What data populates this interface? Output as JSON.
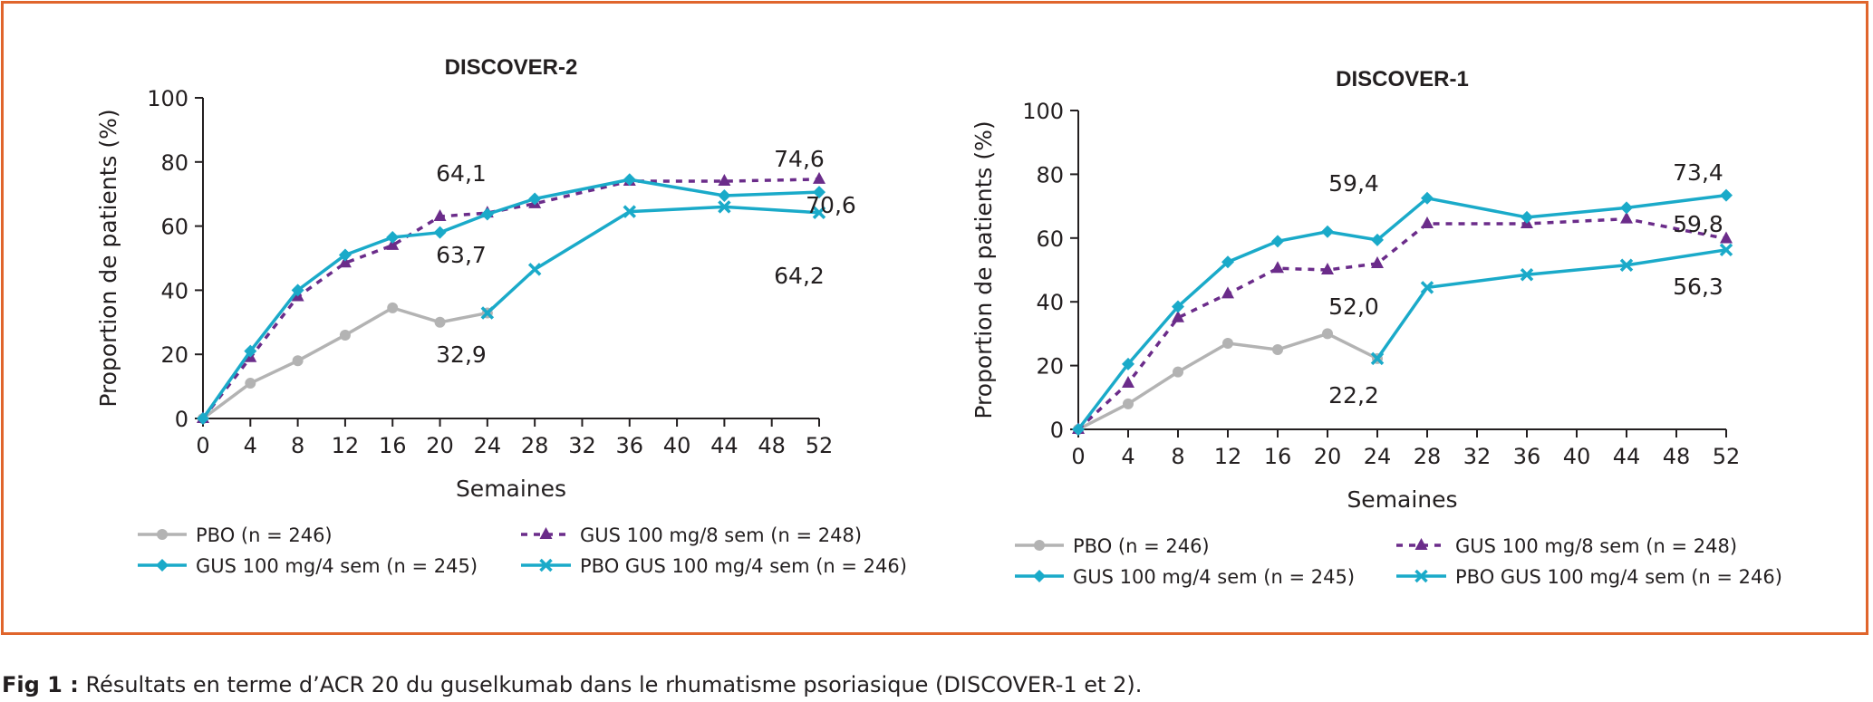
{
  "caption": {
    "label": "Fig 1 :",
    "text": "Résultats en terme d’ACR 20 du guselkumab dans le rhumatisme psoriasique (DISCOVER-1 et 2)."
  },
  "colors": {
    "frame": "#e0652c",
    "pbo": "#b3b3b3",
    "gus8": "#6b2c8a",
    "gus4": "#1aaac9",
    "pbo_gus": "#1aaac9"
  },
  "chart_data": [
    {
      "type": "line",
      "title": "DISCOVER-2",
      "xlabel": "Semaines",
      "ylabel": "Proportion de patients (%)",
      "ylim": [
        0,
        100
      ],
      "xlim": [
        0,
        52
      ],
      "yticks": [
        0,
        20,
        40,
        60,
        80,
        100
      ],
      "xticks": [
        0,
        4,
        8,
        12,
        16,
        20,
        24,
        28,
        32,
        36,
        40,
        44,
        48,
        52
      ],
      "legend_position": "bottom",
      "series": [
        {
          "name": "PBO (n = 246)",
          "style": "pbo",
          "x": [
            0,
            4,
            8,
            12,
            16,
            20,
            24
          ],
          "y": [
            0,
            11,
            18,
            26,
            34.5,
            30,
            32.9
          ]
        },
        {
          "name": "GUS 100 mg/8 sem (n = 248)",
          "style": "gus8",
          "x": [
            0,
            4,
            8,
            12,
            16,
            20,
            24,
            28,
            36,
            44,
            52
          ],
          "y": [
            0,
            19,
            38,
            48.5,
            54,
            63,
            64.1,
            67,
            74,
            74,
            74.6
          ]
        },
        {
          "name": "GUS 100 mg/4 sem (n = 245)",
          "style": "gus4",
          "x": [
            0,
            4,
            8,
            12,
            16,
            20,
            24,
            28,
            36,
            44,
            52
          ],
          "y": [
            0,
            21,
            40,
            51,
            56.5,
            58,
            63.7,
            68.5,
            74.5,
            69.5,
            70.6
          ]
        },
        {
          "name": "PBO GUS 100 mg/4 sem (n = 246)",
          "style": "pbo_gus",
          "x": [
            24,
            28,
            36,
            44,
            52
          ],
          "y": [
            32.9,
            46.5,
            64.5,
            66,
            64.2
          ]
        }
      ],
      "annotations": [
        {
          "text": "64,1",
          "x": 24,
          "y": 64.1
        },
        {
          "text": "74,6",
          "x": 52,
          "y": 74.6
        },
        {
          "text": "70,6",
          "x": 52,
          "y": 70.6
        },
        {
          "text": "63,7",
          "x": 24,
          "y": 63.7
        },
        {
          "text": "64,2",
          "x": 52,
          "y": 64.2
        },
        {
          "text": "32,9",
          "x": 24,
          "y": 32.9
        }
      ]
    },
    {
      "type": "line",
      "title": "DISCOVER-1",
      "xlabel": "Semaines",
      "ylabel": "Proportion de patients (%)",
      "ylim": [
        0,
        100
      ],
      "xlim": [
        0,
        52
      ],
      "yticks": [
        0,
        20,
        40,
        60,
        80,
        100
      ],
      "xticks": [
        0,
        4,
        8,
        12,
        16,
        20,
        24,
        28,
        32,
        36,
        40,
        44,
        48,
        52
      ],
      "legend_position": "bottom",
      "series": [
        {
          "name": "PBO (n = 246)",
          "style": "pbo",
          "x": [
            0,
            4,
            8,
            12,
            16,
            20,
            24
          ],
          "y": [
            0,
            8,
            18,
            27,
            25,
            30,
            22.2
          ]
        },
        {
          "name": "GUS 100 mg/8 sem (n = 248)",
          "style": "gus8",
          "x": [
            0,
            4,
            8,
            12,
            16,
            20,
            24,
            28,
            36,
            44,
            52
          ],
          "y": [
            0,
            14.5,
            35,
            42.5,
            50.5,
            50,
            52.0,
            64.5,
            64.5,
            66,
            59.8
          ]
        },
        {
          "name": "GUS 100 mg/4 sem (n = 245)",
          "style": "gus4",
          "x": [
            0,
            4,
            8,
            12,
            16,
            20,
            24,
            28,
            36,
            44,
            52
          ],
          "y": [
            0,
            20.5,
            38.5,
            52.5,
            59,
            62,
            59.4,
            72.5,
            66.5,
            69.5,
            73.4
          ]
        },
        {
          "name": "PBO GUS 100 mg/4 sem (n = 246)",
          "style": "pbo_gus",
          "x": [
            24,
            28,
            36,
            44,
            52
          ],
          "y": [
            22.2,
            44.5,
            48.5,
            51.5,
            56.3
          ]
        }
      ],
      "annotations": [
        {
          "text": "59,4",
          "x": 24,
          "y": 59.4
        },
        {
          "text": "73,4",
          "x": 52,
          "y": 73.4
        },
        {
          "text": "59,8",
          "x": 52,
          "y": 59.8
        },
        {
          "text": "52,0",
          "x": 24,
          "y": 52.0
        },
        {
          "text": "56,3",
          "x": 52,
          "y": 56.3
        },
        {
          "text": "22,2",
          "x": 24,
          "y": 22.2
        }
      ]
    }
  ]
}
